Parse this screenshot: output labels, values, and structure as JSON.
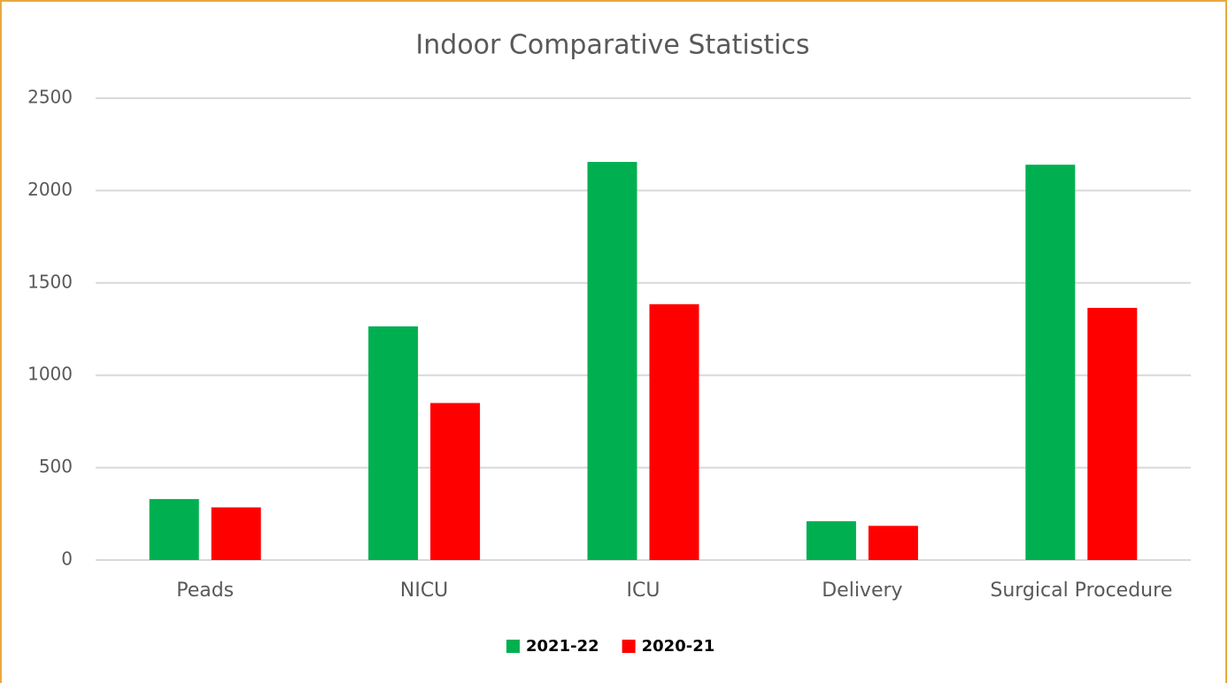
{
  "chart_data": {
    "type": "bar",
    "title": "Indoor Comparative Statistics",
    "categories": [
      "Peads",
      "NICU",
      "ICU",
      "Delivery",
      "Surgical Procedure"
    ],
    "series": [
      {
        "name": "2021-22",
        "color": "#00b050",
        "values": [
          330,
          1265,
          2155,
          210,
          2140
        ]
      },
      {
        "name": "2020-21",
        "color": "#ff0000",
        "values": [
          285,
          850,
          1385,
          185,
          1365
        ]
      }
    ],
    "ylim": [
      0,
      2500
    ],
    "yticks": [
      0,
      500,
      1000,
      1500,
      2000,
      2500
    ],
    "grid": true,
    "legend": "bottom"
  }
}
